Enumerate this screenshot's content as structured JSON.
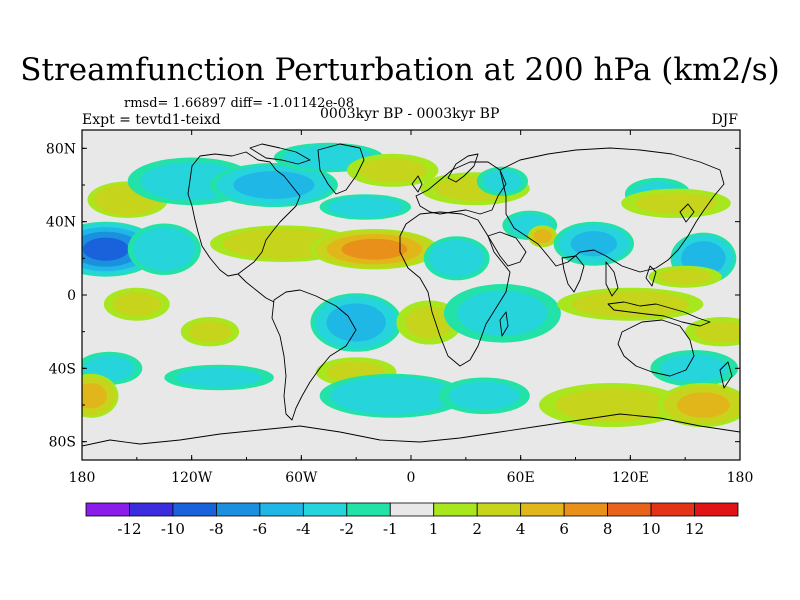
{
  "title": "Streamfunction Perturbation at 200 hPa (km2/s)",
  "stats": "rmsd= 1.66897 diff= -1.01142e-08",
  "experiment": "Expt = tevtd1-teixd",
  "period": "0003kyr BP - 0003kyr BP",
  "season": "DJF",
  "chart_data": {
    "type": "heatmap",
    "projection": "cylindrical-equidistant",
    "lon_range": [
      -180,
      180
    ],
    "lat_range": [
      -90,
      90
    ],
    "lat_ticks": [
      {
        "value": 80,
        "label": "80N"
      },
      {
        "value": 40,
        "label": "40N"
      },
      {
        "value": 0,
        "label": "0"
      },
      {
        "value": -40,
        "label": "40S"
      },
      {
        "value": -80,
        "label": "80S"
      }
    ],
    "lon_ticks": [
      {
        "value": -180,
        "label": "180"
      },
      {
        "value": -120,
        "label": "120W"
      },
      {
        "value": -60,
        "label": "60W"
      },
      {
        "value": 0,
        "label": "0"
      },
      {
        "value": 60,
        "label": "60E"
      },
      {
        "value": 120,
        "label": "120E"
      },
      {
        "value": 180,
        "label": "180"
      }
    ],
    "colorbar": {
      "boundaries": [
        -12,
        -10,
        -8,
        -6,
        -4,
        -2,
        -1,
        1,
        2,
        4,
        6,
        8,
        10,
        12
      ],
      "labels": [
        "-12",
        "-10",
        "-8",
        "-6",
        "-4",
        "-2",
        "-1",
        "1",
        "2",
        "4",
        "6",
        "8",
        "10",
        "12"
      ],
      "colors": [
        "#8a1ee8",
        "#3c2ce0",
        "#1a62dc",
        "#1b90de",
        "#1fb8e6",
        "#26d4dc",
        "#23e2a8",
        "#e8e8e8",
        "#a8e61e",
        "#c6d41c",
        "#e0b61a",
        "#e8901a",
        "#e8621c",
        "#e43418",
        "#e01414"
      ]
    },
    "anomaly_centers": [
      {
        "lon": -167,
        "lat": 25,
        "value": -8.5,
        "rx": 30,
        "ry": 15
      },
      {
        "lon": -135,
        "lat": 25,
        "value": -3.5,
        "rx": 20,
        "ry": 14
      },
      {
        "lon": -155,
        "lat": 52,
        "value": 3.5,
        "rx": 22,
        "ry": 10
      },
      {
        "lon": -120,
        "lat": 62,
        "value": -2.8,
        "rx": 35,
        "ry": 13
      },
      {
        "lon": -75,
        "lat": 60,
        "value": -5,
        "rx": 35,
        "ry": 12
      },
      {
        "lon": -45,
        "lat": 75,
        "value": -3,
        "rx": 30,
        "ry": 8
      },
      {
        "lon": -70,
        "lat": 28,
        "value": 3.2,
        "rx": 40,
        "ry": 10
      },
      {
        "lon": -20,
        "lat": 25,
        "value": 6.8,
        "rx": 35,
        "ry": 11
      },
      {
        "lon": -25,
        "lat": 48,
        "value": -3.2,
        "rx": 25,
        "ry": 7
      },
      {
        "lon": -10,
        "lat": 68,
        "value": 2.2,
        "rx": 25,
        "ry": 9
      },
      {
        "lon": 35,
        "lat": 58,
        "value": 2.2,
        "rx": 30,
        "ry": 9
      },
      {
        "lon": 50,
        "lat": 62,
        "value": -2.5,
        "rx": 14,
        "ry": 8
      },
      {
        "lon": 25,
        "lat": 20,
        "value": -3.5,
        "rx": 18,
        "ry": 12
      },
      {
        "lon": 65,
        "lat": 38,
        "value": -2.5,
        "rx": 15,
        "ry": 8
      },
      {
        "lon": 72,
        "lat": 32,
        "value": 5,
        "rx": 8,
        "ry": 6
      },
      {
        "lon": 100,
        "lat": 28,
        "value": -4.5,
        "rx": 22,
        "ry": 12
      },
      {
        "lon": 135,
        "lat": 55,
        "value": -2.3,
        "rx": 18,
        "ry": 9
      },
      {
        "lon": 160,
        "lat": 20,
        "value": -5.5,
        "rx": 18,
        "ry": 14
      },
      {
        "lon": 145,
        "lat": 50,
        "value": 2.2,
        "rx": 30,
        "ry": 8
      },
      {
        "lon": -150,
        "lat": -5,
        "value": 2.2,
        "rx": 18,
        "ry": 9
      },
      {
        "lon": -110,
        "lat": -20,
        "value": 2.2,
        "rx": 16,
        "ry": 8
      },
      {
        "lon": -30,
        "lat": -15,
        "value": -5.2,
        "rx": 25,
        "ry": 16
      },
      {
        "lon": -30,
        "lat": -42,
        "value": 2.2,
        "rx": 22,
        "ry": 8
      },
      {
        "lon": 10,
        "lat": -15,
        "value": 2.2,
        "rx": 18,
        "ry": 12
      },
      {
        "lon": 50,
        "lat": -10,
        "value": -2.5,
        "rx": 32,
        "ry": 16
      },
      {
        "lon": 120,
        "lat": -5,
        "value": 2.8,
        "rx": 40,
        "ry": 9
      },
      {
        "lon": 150,
        "lat": 10,
        "value": 2.2,
        "rx": 20,
        "ry": 6
      },
      {
        "lon": 155,
        "lat": -40,
        "value": -2.5,
        "rx": 24,
        "ry": 10
      },
      {
        "lon": -165,
        "lat": -40,
        "value": -2.5,
        "rx": 18,
        "ry": 9
      },
      {
        "lon": -175,
        "lat": -55,
        "value": 4.5,
        "rx": 15,
        "ry": 12
      },
      {
        "lon": -105,
        "lat": -45,
        "value": -2.5,
        "rx": 30,
        "ry": 7
      },
      {
        "lon": -10,
        "lat": -55,
        "value": -3.8,
        "rx": 40,
        "ry": 12
      },
      {
        "lon": 40,
        "lat": -55,
        "value": -2.5,
        "rx": 25,
        "ry": 10
      },
      {
        "lon": 110,
        "lat": -60,
        "value": 2.5,
        "rx": 40,
        "ry": 12
      },
      {
        "lon": 160,
        "lat": -60,
        "value": 4.5,
        "rx": 25,
        "ry": 12
      },
      {
        "lon": 170,
        "lat": -20,
        "value": 2.2,
        "rx": 20,
        "ry": 8
      }
    ]
  }
}
